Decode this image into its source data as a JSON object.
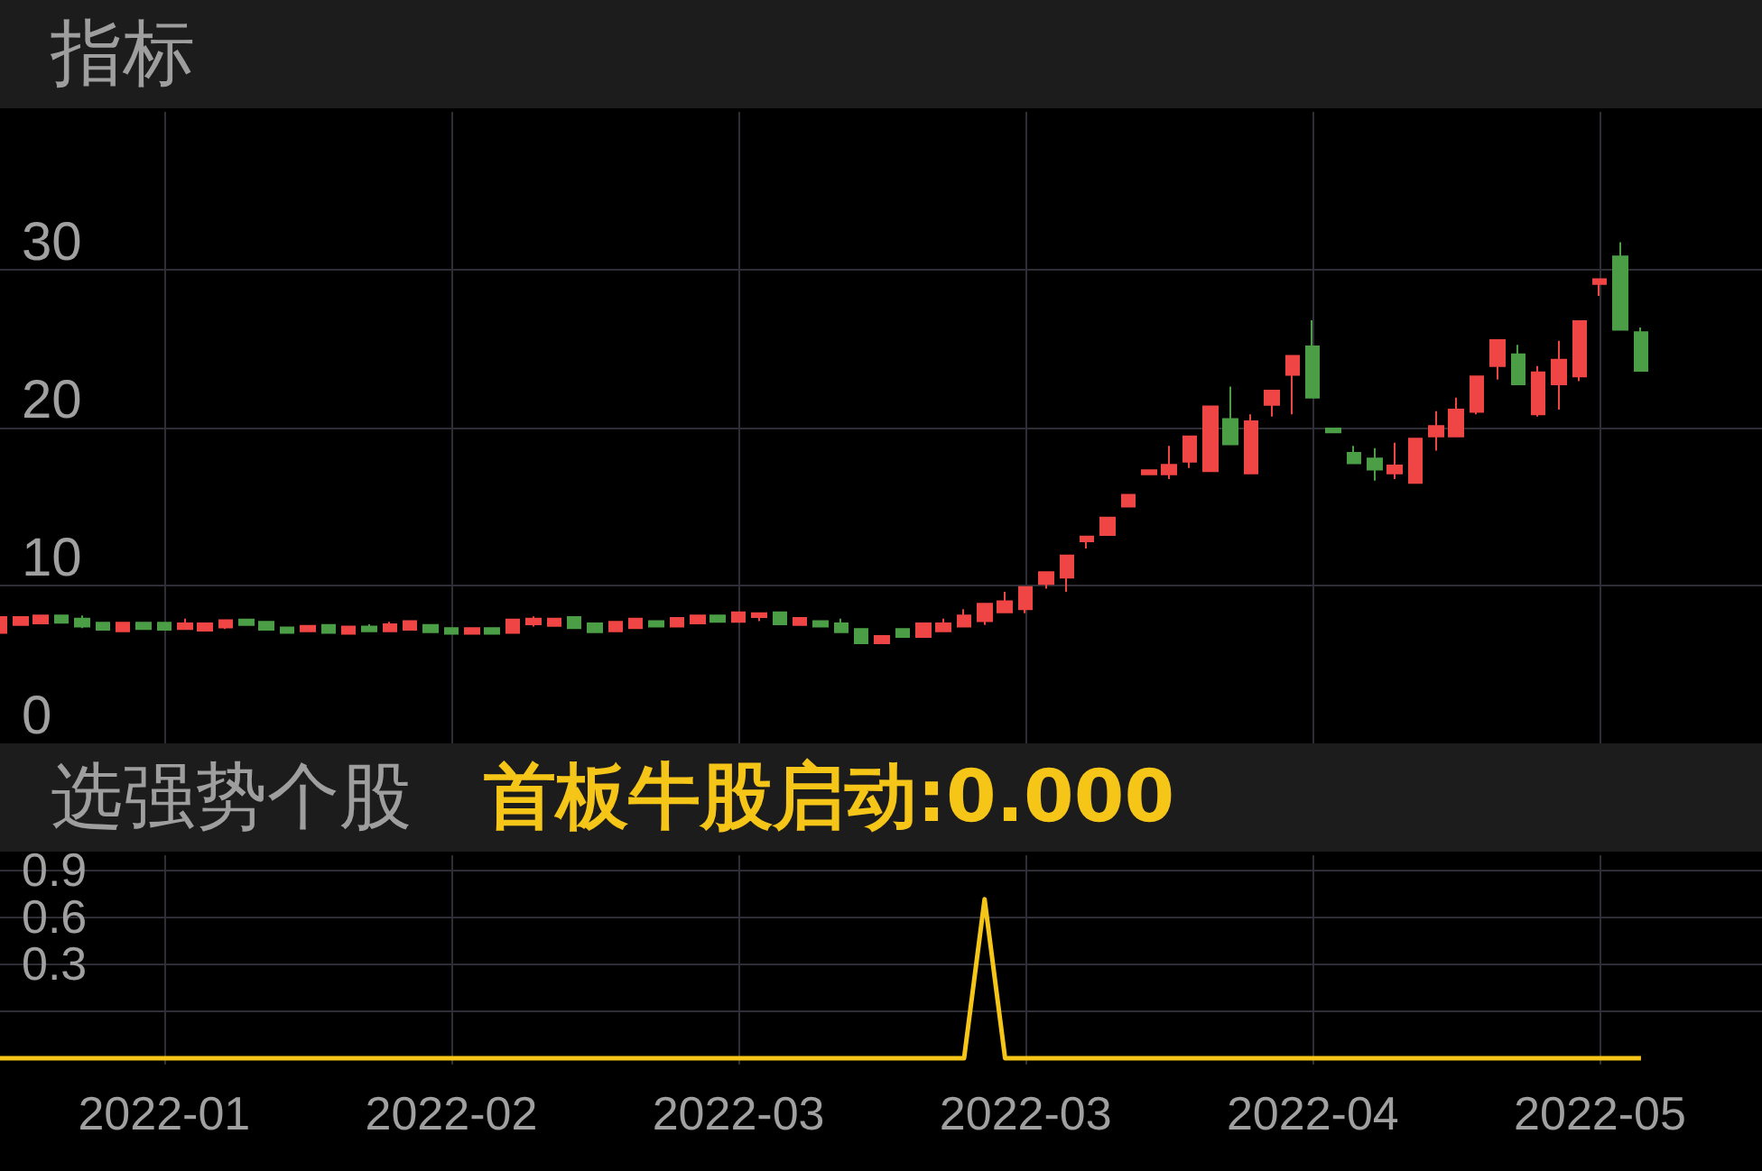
{
  "chart_data": [
    {
      "type": "candlestick",
      "title": "指标",
      "categories": [
        null,
        null,
        null,
        null,
        null,
        null,
        null,
        null,
        "2022-01",
        null,
        null,
        null,
        null,
        null,
        null,
        null,
        null,
        null,
        null,
        null,
        null,
        null,
        "2022-02",
        null,
        null,
        null,
        null,
        null,
        null,
        null,
        null,
        null,
        null,
        null,
        null,
        null,
        "2022-03",
        null,
        null,
        null,
        null,
        null,
        null,
        null,
        null,
        null,
        null,
        null,
        null,
        null,
        "2022-03",
        null,
        null,
        null,
        null,
        null,
        null,
        null,
        null,
        null,
        null,
        null,
        null,
        null,
        "2022-04",
        null,
        null,
        null,
        null,
        null,
        null,
        null,
        null,
        null,
        null,
        null,
        null,
        null,
        "2022-05",
        null,
        null
      ],
      "ohlc": [
        [
          7.0,
          8.0,
          7.0,
          8.0
        ],
        [
          7.5,
          8.0,
          7.5,
          8.0
        ],
        [
          7.6,
          8.1,
          7.6,
          8.1
        ],
        [
          8.1,
          8.1,
          7.65,
          7.65
        ],
        [
          7.9,
          8.1,
          7.3,
          7.4
        ],
        [
          7.65,
          7.65,
          7.2,
          7.2
        ],
        [
          7.1,
          7.65,
          7.1,
          7.65
        ],
        [
          7.65,
          7.65,
          7.25,
          7.25
        ],
        [
          7.65,
          7.65,
          7.2,
          7.2
        ],
        [
          7.25,
          7.9,
          7.25,
          7.6
        ],
        [
          7.15,
          7.6,
          7.15,
          7.6
        ],
        [
          7.35,
          7.8,
          7.25,
          7.8
        ],
        [
          7.85,
          7.85,
          7.5,
          7.5
        ],
        [
          7.7,
          7.7,
          7.2,
          7.2
        ],
        [
          7.35,
          7.35,
          7.0,
          7.0
        ],
        [
          7.1,
          7.45,
          7.1,
          7.45
        ],
        [
          7.5,
          7.5,
          7.0,
          7.0
        ],
        [
          6.95,
          7.4,
          6.95,
          7.4
        ],
        [
          7.4,
          7.55,
          7.1,
          7.1
        ],
        [
          7.1,
          7.7,
          7.1,
          7.55
        ],
        [
          7.2,
          7.75,
          7.2,
          7.75
        ],
        [
          7.5,
          7.5,
          7.05,
          7.05
        ],
        [
          7.3,
          7.3,
          6.95,
          6.95
        ],
        [
          6.95,
          7.3,
          6.95,
          7.3
        ],
        [
          7.3,
          7.3,
          6.95,
          6.95
        ],
        [
          7.0,
          7.85,
          7.0,
          7.85
        ],
        [
          7.55,
          8.05,
          7.4,
          7.9
        ],
        [
          7.45,
          7.9,
          7.45,
          7.9
        ],
        [
          8.0,
          8.0,
          7.3,
          7.3
        ],
        [
          7.6,
          7.6,
          7.05,
          7.05
        ],
        [
          7.1,
          7.7,
          7.1,
          7.7
        ],
        [
          7.3,
          7.9,
          7.3,
          7.9
        ],
        [
          7.75,
          7.75,
          7.4,
          7.4
        ],
        [
          7.4,
          7.95,
          7.4,
          7.95
        ],
        [
          7.6,
          8.1,
          7.6,
          8.1
        ],
        [
          8.1,
          8.1,
          7.7,
          7.7
        ],
        [
          7.7,
          8.3,
          7.7,
          8.3
        ],
        [
          8.0,
          8.25,
          7.75,
          8.25
        ],
        [
          8.3,
          8.3,
          7.55,
          7.55
        ],
        [
          7.5,
          7.95,
          7.5,
          7.95
        ],
        [
          7.75,
          7.75,
          7.4,
          7.4
        ],
        [
          7.6,
          7.9,
          7.05,
          7.05
        ],
        [
          7.25,
          7.25,
          6.35,
          6.35
        ],
        [
          6.35,
          6.8,
          6.35,
          6.8
        ],
        [
          7.25,
          7.25,
          6.75,
          6.75
        ],
        [
          6.75,
          7.6,
          6.75,
          7.6
        ],
        [
          7.1,
          7.9,
          7.1,
          7.6
        ],
        [
          7.4,
          8.5,
          7.4,
          8.1
        ],
        [
          7.75,
          8.85,
          7.5,
          8.85
        ],
        [
          8.3,
          9.6,
          8.3,
          9.0
        ],
        [
          8.5,
          9.9,
          8.25,
          9.9
        ],
        [
          10.1,
          10.85,
          9.8,
          10.85
        ],
        [
          10.5,
          11.9,
          9.6,
          11.9
        ],
        [
          12.8,
          13.1,
          12.35,
          13.1
        ],
        [
          13.2,
          14.3,
          13.2,
          14.3
        ],
        [
          15.0,
          15.75,
          15.0,
          15.75
        ],
        [
          17.05,
          17.3,
          17.05,
          17.3
        ],
        [
          17.05,
          18.85,
          16.75,
          17.65
        ],
        [
          17.85,
          19.45,
          17.45,
          19.45
        ],
        [
          17.25,
          21.35,
          17.25,
          21.35
        ],
        [
          20.55,
          22.6,
          18.95,
          18.95
        ],
        [
          17.1,
          20.85,
          17.1,
          20.4
        ],
        [
          21.45,
          22.35,
          20.7,
          22.35
        ],
        [
          23.35,
          24.55,
          20.85,
          24.55
        ],
        [
          25.15,
          26.8,
          21.9,
          21.9
        ],
        [
          19.95,
          19.95,
          19.7,
          19.7
        ],
        [
          18.4,
          18.85,
          17.75,
          17.75
        ],
        [
          18.05,
          18.7,
          16.65,
          17.35
        ],
        [
          17.1,
          19.05,
          16.75,
          17.6
        ],
        [
          16.5,
          19.3,
          16.5,
          19.3
        ],
        [
          19.45,
          21.05,
          18.55,
          20.1
        ],
        [
          19.45,
          21.9,
          19.45,
          21.15
        ],
        [
          21.0,
          23.25,
          20.85,
          23.25
        ],
        [
          23.9,
          25.55,
          23.05,
          25.55
        ],
        [
          24.65,
          25.25,
          22.75,
          22.75
        ],
        [
          20.85,
          23.9,
          20.7,
          23.5
        ],
        [
          22.75,
          25.5,
          21.15,
          24.3
        ],
        [
          23.25,
          26.75,
          22.95,
          26.75
        ],
        [
          29.1,
          29.4,
          28.35,
          29.4
        ],
        [
          30.85,
          31.75,
          26.2,
          26.2
        ],
        [
          26.05,
          26.35,
          23.6,
          23.6
        ]
      ],
      "colors": [
        "#f04545",
        "#f04545",
        "#f04545",
        "#4b9e46",
        "#4b9e46",
        "#4b9e46",
        "#f04545",
        "#4b9e46",
        "#4b9e46",
        "#f04545",
        "#f04545",
        "#f04545",
        "#4b9e46",
        "#4b9e46",
        "#4b9e46",
        "#f04545",
        "#4b9e46",
        "#f04545",
        "#4b9e46",
        "#f04545",
        "#f04545",
        "#4b9e46",
        "#4b9e46",
        "#f04545",
        "#4b9e46",
        "#f04545",
        "#f04545",
        "#f04545",
        "#4b9e46",
        "#4b9e46",
        "#f04545",
        "#f04545",
        "#4b9e46",
        "#f04545",
        "#f04545",
        "#4b9e46",
        "#f04545",
        "#f04545",
        "#4b9e46",
        "#f04545",
        "#4b9e46",
        "#4b9e46",
        "#4b9e46",
        "#f04545",
        "#4b9e46",
        "#f04545",
        "#f04545",
        "#f04545",
        "#f04545",
        "#f04545",
        "#f04545",
        "#f04545",
        "#f04545",
        "#f04545",
        "#f04545",
        "#f04545",
        "#f04545",
        "#f04545",
        "#f04545",
        "#f04545",
        "#4b9e46",
        "#f04545",
        "#f04545",
        "#f04545",
        "#4b9e46",
        "#4b9e46",
        "#4b9e46",
        "#4b9e46",
        "#f04545",
        "#f04545",
        "#f04545",
        "#f04545",
        "#f04545",
        "#f04545",
        "#4b9e46",
        "#f04545",
        "#f04545",
        "#f04545",
        "#f04545",
        "#4b9e46",
        "#4b9e46"
      ],
      "ylim": [
        0,
        40
      ],
      "yticks": [
        0,
        10,
        20,
        30
      ],
      "grid": true,
      "tick_labels": "y"
    },
    {
      "type": "line",
      "title": "选强势个股",
      "annotations": [
        "首板牛股启动:0.000"
      ],
      "categories": [
        null,
        null,
        null,
        null,
        null,
        null,
        null,
        null,
        "2022-01",
        null,
        null,
        null,
        null,
        null,
        null,
        null,
        null,
        null,
        null,
        null,
        null,
        null,
        "2022-02",
        null,
        null,
        null,
        null,
        null,
        null,
        null,
        null,
        null,
        null,
        null,
        null,
        null,
        "2022-03",
        null,
        null,
        null,
        null,
        null,
        null,
        null,
        null,
        null,
        null,
        null,
        null,
        null,
        "2022-03",
        null,
        null,
        null,
        null,
        null,
        null,
        null,
        null,
        null,
        null,
        null,
        null,
        null,
        "2022-04",
        null,
        null,
        null,
        null,
        null,
        null,
        null,
        null,
        null,
        null,
        null,
        null,
        null,
        "2022-05",
        null,
        null
      ],
      "series": [
        {
          "color": "#f5c518",
          "values": [
            -0.3,
            -0.3,
            -0.3,
            -0.3,
            -0.3,
            -0.3,
            -0.3,
            -0.3,
            -0.3,
            -0.3,
            -0.3,
            -0.3,
            -0.3,
            -0.3,
            -0.3,
            -0.3,
            -0.3,
            -0.3,
            -0.3,
            -0.3,
            -0.3,
            -0.3,
            -0.3,
            -0.3,
            -0.3,
            -0.3,
            -0.3,
            -0.3,
            -0.3,
            -0.3,
            -0.3,
            -0.3,
            -0.3,
            -0.3,
            -0.3,
            -0.3,
            -0.3,
            -0.3,
            -0.3,
            -0.3,
            -0.3,
            -0.3,
            -0.3,
            -0.3,
            -0.3,
            -0.3,
            -0.3,
            -0.3,
            0.71,
            -0.3,
            -0.3,
            -0.3,
            -0.3,
            -0.3,
            -0.3,
            -0.3,
            -0.3,
            -0.3,
            -0.3,
            -0.3,
            -0.3,
            -0.3,
            -0.3,
            -0.3,
            -0.3,
            -0.3,
            -0.3,
            -0.3,
            -0.3,
            -0.3,
            -0.3,
            -0.3,
            -0.3,
            -0.3,
            -0.3,
            -0.3,
            -0.3,
            -0.3,
            -0.3,
            -0.3,
            -0.3
          ]
        }
      ],
      "ylim": [
        -0.34,
        0.99
      ],
      "yticks": [
        0.3,
        0.6,
        0.9
      ],
      "grid": true,
      "marker": "none"
    }
  ]
}
